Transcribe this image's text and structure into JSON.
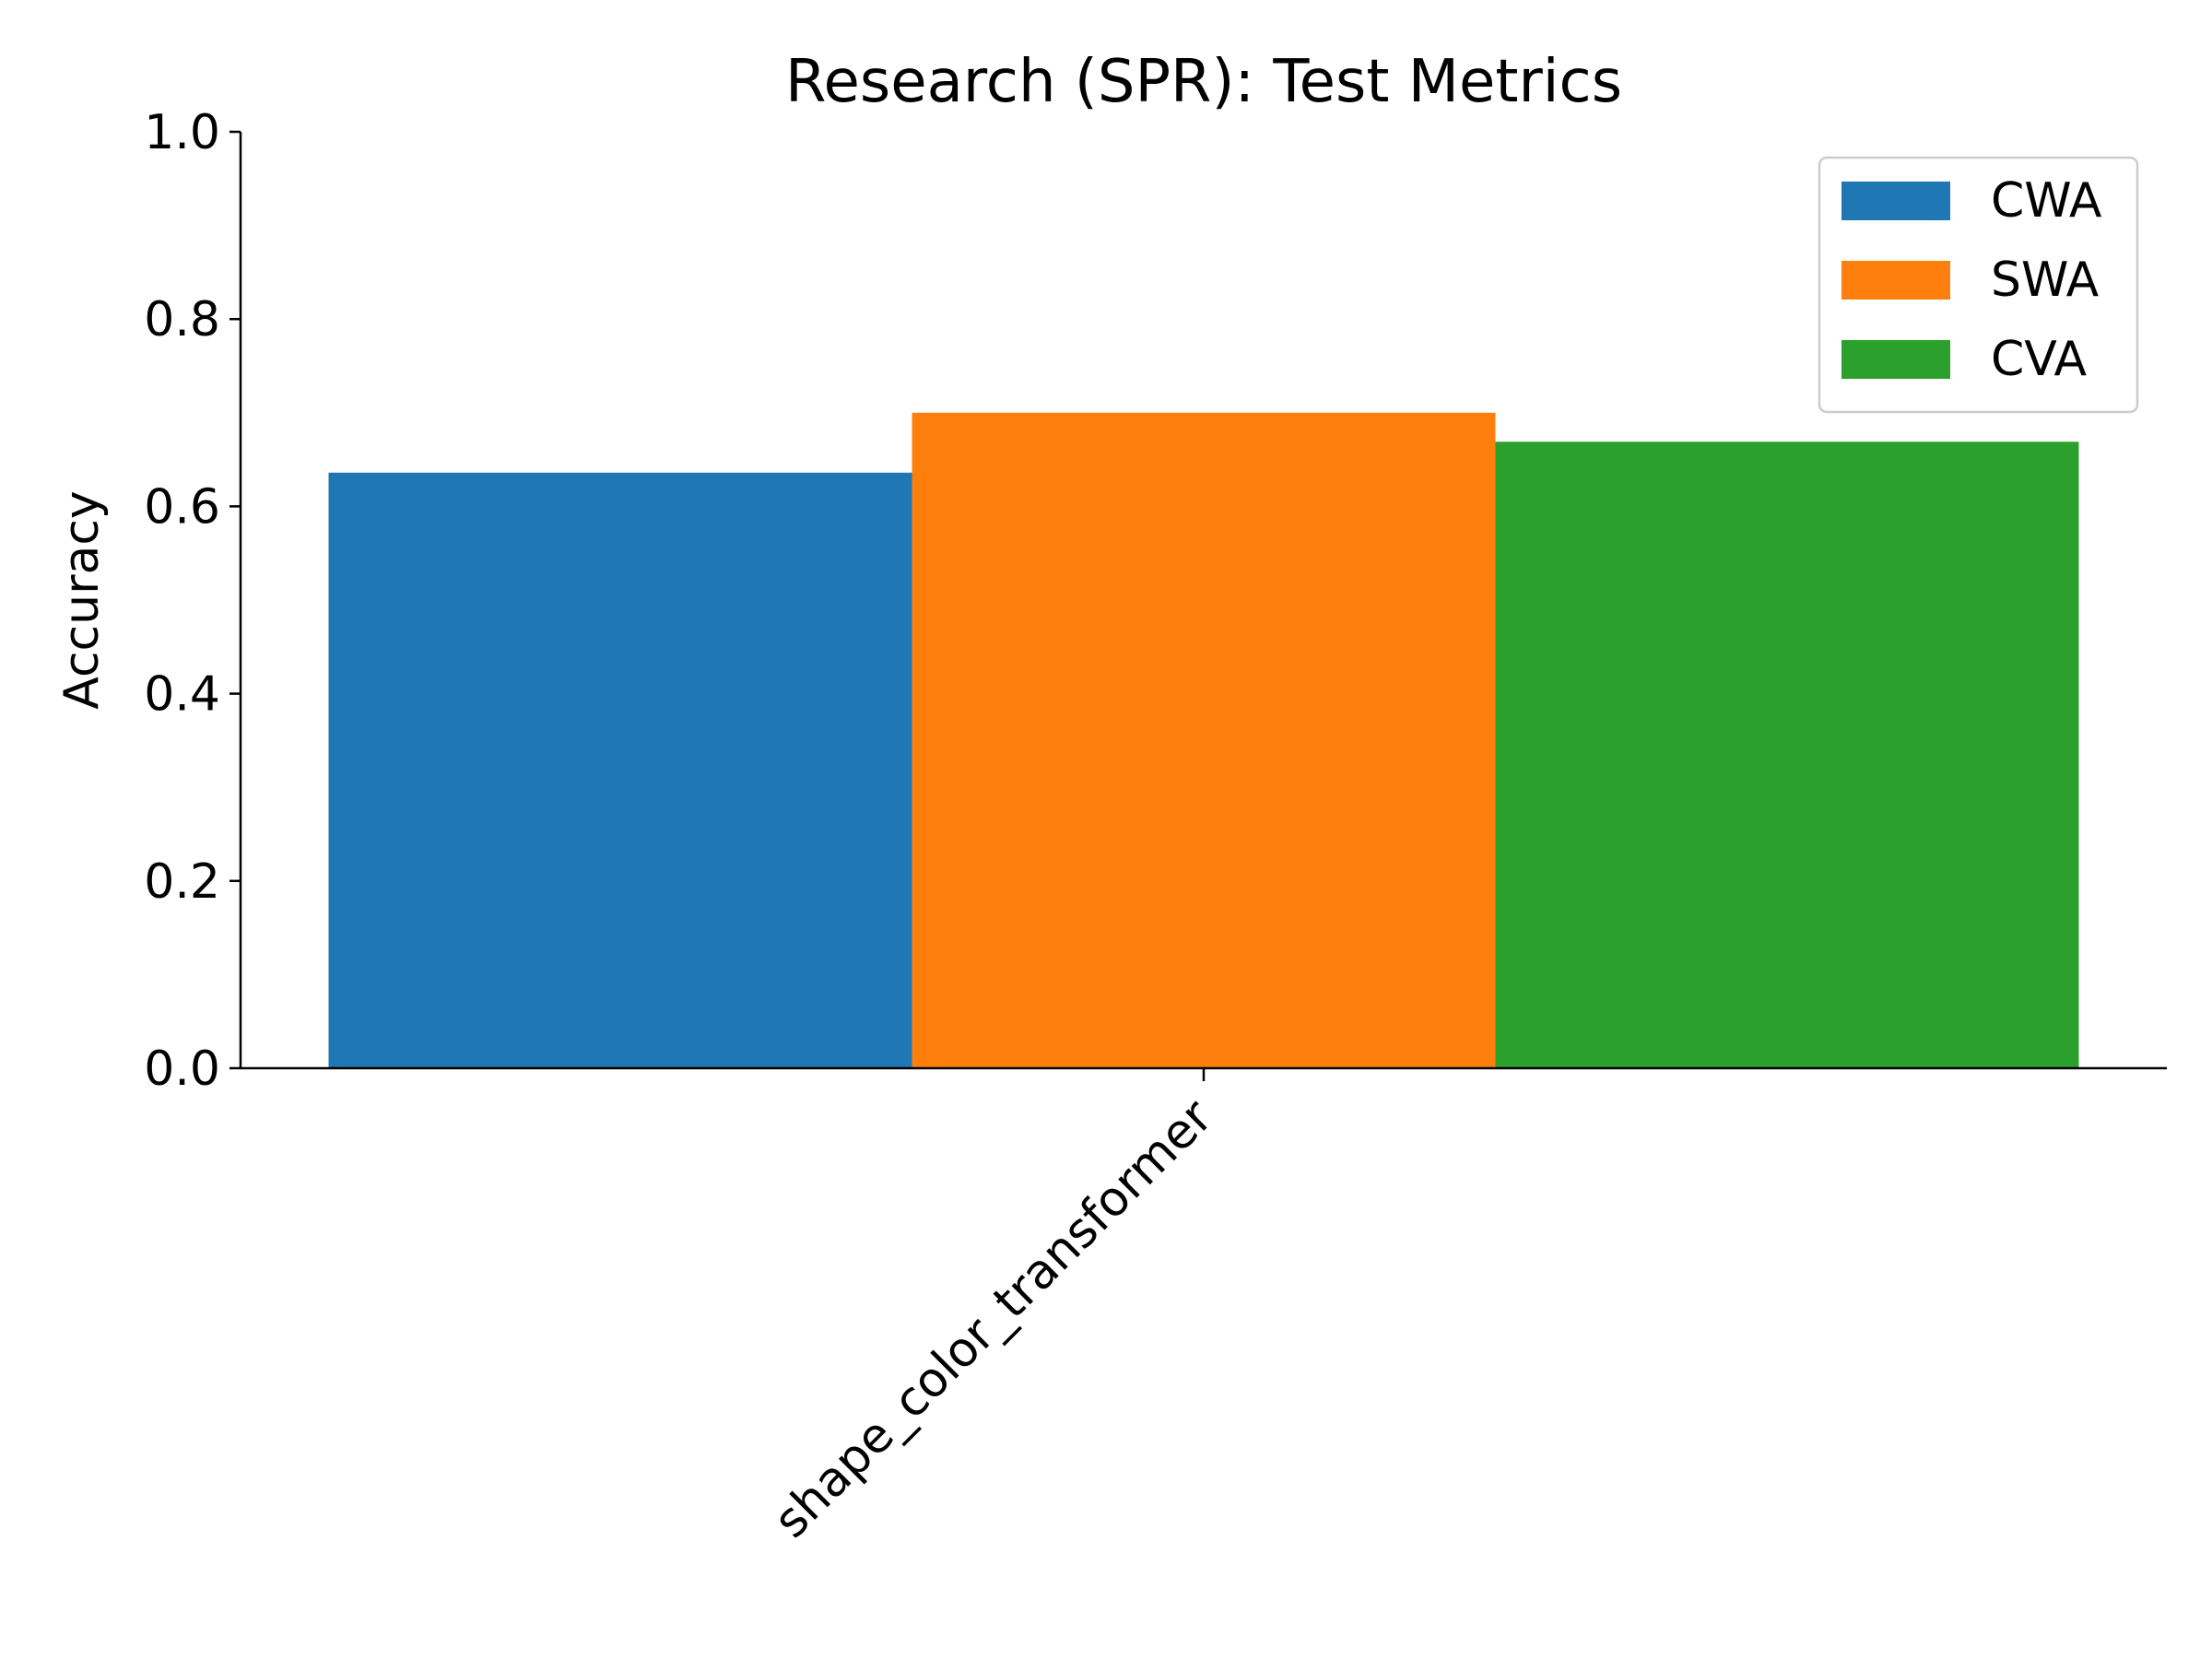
{
  "chart_data": {
    "type": "bar",
    "title": "Research (SPR): Test Metrics",
    "xlabel": "",
    "ylabel": "Accuracy",
    "ylim": [
      0,
      1.0
    ],
    "yticks": [
      "0.0",
      "0.2",
      "0.4",
      "0.6",
      "0.8",
      "1.0"
    ],
    "categories": [
      "shape_color_transformer"
    ],
    "series": [
      {
        "name": "CWA",
        "values": [
          0.636
        ],
        "color": "#1f77b4"
      },
      {
        "name": "SWA",
        "values": [
          0.7
        ],
        "color": "#ff7f0e"
      },
      {
        "name": "CVA",
        "values": [
          0.669
        ],
        "color": "#2ca02c"
      }
    ],
    "legend_position": "top-right",
    "grid": false
  }
}
